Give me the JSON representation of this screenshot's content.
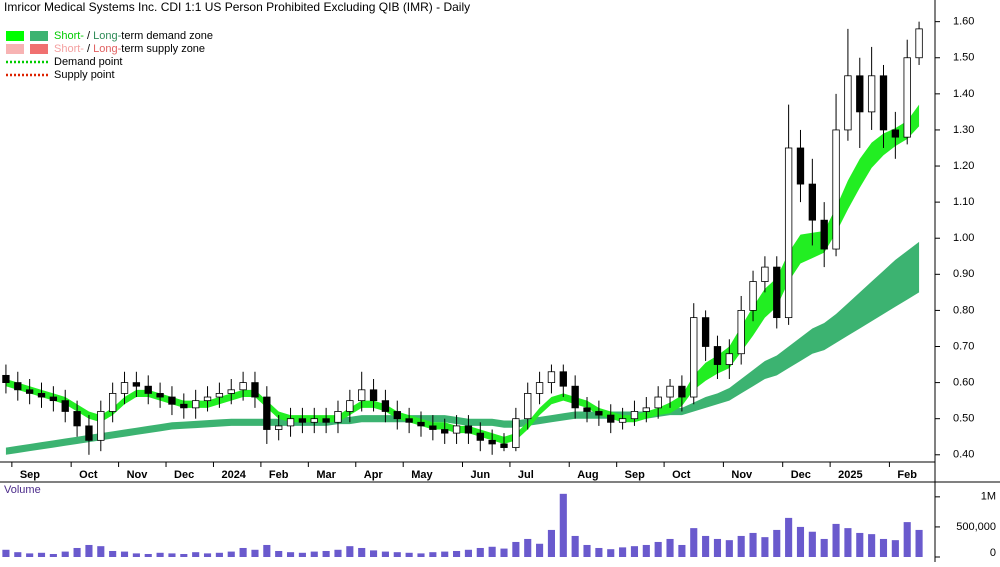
{
  "chart_data": {
    "type": "candlestick",
    "title": "Imricor Medical Systems Inc. CDI 1:1 US Person Prohibited Excluding QIB (IMR) - Daily",
    "categories": [
      null,
      "Sep",
      null,
      null,
      null,
      null,
      "Oct",
      null,
      null,
      null,
      "Nov",
      null,
      null,
      null,
      "Dec",
      null,
      null,
      null,
      "2024",
      null,
      null,
      null,
      "Feb",
      null,
      null,
      null,
      "Mar",
      null,
      null,
      null,
      "Apr",
      null,
      null,
      null,
      "May",
      null,
      null,
      null,
      null,
      "Jun",
      null,
      null,
      null,
      "Jul",
      null,
      null,
      null,
      null,
      "Aug",
      null,
      null,
      null,
      "Sep",
      null,
      null,
      null,
      "Oct",
      null,
      null,
      null,
      null,
      "Nov",
      null,
      null,
      null,
      null,
      "Dec",
      null,
      null,
      null,
      "2025",
      null,
      null,
      null,
      null,
      "Feb",
      null,
      null
    ],
    "open": [
      0.62,
      0.6,
      0.58,
      0.57,
      0.56,
      0.55,
      0.52,
      0.48,
      0.44,
      0.52,
      0.57,
      0.6,
      0.59,
      0.57,
      0.56,
      0.54,
      0.53,
      0.55,
      0.56,
      0.57,
      0.58,
      0.6,
      0.56,
      0.47,
      0.48,
      0.5,
      0.49,
      0.5,
      0.49,
      0.52,
      0.55,
      0.58,
      0.55,
      0.52,
      0.5,
      0.49,
      0.48,
      0.47,
      0.46,
      0.48,
      0.46,
      0.44,
      0.43,
      0.42,
      0.5,
      0.57,
      0.6,
      0.63,
      0.59,
      0.53,
      0.52,
      0.51,
      0.49,
      0.5,
      0.52,
      0.53,
      0.56,
      0.59,
      0.56,
      0.78,
      0.7,
      0.65,
      0.68,
      0.8,
      0.88,
      0.92,
      0.78,
      1.25,
      1.15,
      1.05,
      0.97,
      1.3,
      1.45,
      1.35,
      1.45,
      1.3,
      1.28,
      1.5
    ],
    "high": [
      0.65,
      0.63,
      0.61,
      0.6,
      0.59,
      0.58,
      0.55,
      0.51,
      0.55,
      0.6,
      0.63,
      0.63,
      0.62,
      0.6,
      0.59,
      0.57,
      0.58,
      0.59,
      0.6,
      0.61,
      0.63,
      0.63,
      0.59,
      0.51,
      0.53,
      0.53,
      0.53,
      0.53,
      0.55,
      0.58,
      0.63,
      0.61,
      0.58,
      0.55,
      0.53,
      0.52,
      0.51,
      0.5,
      0.51,
      0.51,
      0.49,
      0.47,
      0.46,
      0.53,
      0.6,
      0.63,
      0.65,
      0.65,
      0.62,
      0.56,
      0.55,
      0.54,
      0.53,
      0.55,
      0.56,
      0.59,
      0.61,
      0.62,
      0.82,
      0.8,
      0.73,
      0.72,
      0.84,
      0.91,
      0.95,
      0.95,
      1.37,
      1.3,
      1.22,
      1.1,
      1.4,
      1.58,
      1.5,
      1.53,
      1.48,
      1.35,
      1.55,
      1.6
    ],
    "low": [
      0.57,
      0.55,
      0.54,
      0.53,
      0.52,
      0.49,
      0.45,
      0.4,
      0.41,
      0.49,
      0.54,
      0.56,
      0.54,
      0.53,
      0.51,
      0.5,
      0.5,
      0.52,
      0.53,
      0.54,
      0.55,
      0.53,
      0.43,
      0.44,
      0.45,
      0.46,
      0.46,
      0.46,
      0.46,
      0.49,
      0.52,
      0.52,
      0.49,
      0.47,
      0.46,
      0.45,
      0.44,
      0.43,
      0.43,
      0.43,
      0.41,
      0.4,
      0.41,
      0.41,
      0.47,
      0.54,
      0.57,
      0.56,
      0.5,
      0.49,
      0.48,
      0.46,
      0.47,
      0.48,
      0.49,
      0.5,
      0.53,
      0.52,
      0.54,
      0.66,
      0.61,
      0.61,
      0.65,
      0.77,
      0.85,
      0.75,
      0.76,
      1.1,
      0.98,
      0.92,
      0.95,
      1.27,
      1.25,
      1.3,
      1.25,
      1.22,
      1.26,
      1.48
    ],
    "close": [
      0.6,
      0.58,
      0.57,
      0.56,
      0.55,
      0.52,
      0.48,
      0.44,
      0.52,
      0.57,
      0.6,
      0.59,
      0.57,
      0.56,
      0.54,
      0.53,
      0.55,
      0.56,
      0.57,
      0.58,
      0.6,
      0.56,
      0.47,
      0.48,
      0.5,
      0.49,
      0.5,
      0.49,
      0.52,
      0.55,
      0.58,
      0.55,
      0.52,
      0.5,
      0.49,
      0.48,
      0.47,
      0.46,
      0.48,
      0.46,
      0.44,
      0.43,
      0.42,
      0.5,
      0.57,
      0.6,
      0.63,
      0.59,
      0.53,
      0.52,
      0.51,
      0.49,
      0.5,
      0.52,
      0.53,
      0.56,
      0.59,
      0.56,
      0.78,
      0.7,
      0.65,
      0.68,
      0.8,
      0.88,
      0.92,
      0.78,
      1.25,
      1.15,
      1.05,
      0.97,
      1.3,
      1.45,
      1.35,
      1.45,
      1.3,
      1.28,
      1.5,
      1.58
    ],
    "short_term_zone": {
      "color": "#22ee22",
      "lower": [
        0.59,
        0.58,
        0.57,
        0.56,
        0.55,
        0.54,
        0.52,
        0.5,
        0.49,
        0.51,
        0.54,
        0.56,
        0.56,
        0.55,
        0.54,
        0.53,
        0.53,
        0.53,
        0.54,
        0.55,
        0.56,
        0.56,
        0.53,
        0.5,
        0.49,
        0.49,
        0.49,
        0.49,
        0.49,
        0.51,
        0.53,
        0.53,
        0.52,
        0.5,
        0.49,
        0.48,
        0.47,
        0.47,
        0.46,
        0.46,
        0.45,
        0.44,
        0.43,
        0.44,
        0.47,
        0.51,
        0.54,
        0.55,
        0.54,
        0.53,
        0.51,
        0.5,
        0.49,
        0.49,
        0.5,
        0.51,
        0.515,
        0.535,
        0.58,
        0.605,
        0.625,
        0.64,
        0.685,
        0.73,
        0.78,
        0.81,
        0.88,
        0.93,
        0.945,
        0.96,
        1.015,
        1.08,
        1.14,
        1.195,
        1.23,
        1.255,
        1.275,
        1.31
      ],
      "upper": [
        0.61,
        0.6,
        0.59,
        0.58,
        0.57,
        0.56,
        0.54,
        0.52,
        0.51,
        0.53,
        0.56,
        0.58,
        0.58,
        0.57,
        0.56,
        0.55,
        0.55,
        0.55,
        0.56,
        0.57,
        0.58,
        0.58,
        0.55,
        0.52,
        0.51,
        0.51,
        0.51,
        0.51,
        0.51,
        0.53,
        0.55,
        0.55,
        0.54,
        0.52,
        0.51,
        0.5,
        0.49,
        0.49,
        0.48,
        0.48,
        0.47,
        0.46,
        0.45,
        0.46,
        0.49,
        0.53,
        0.56,
        0.57,
        0.56,
        0.55,
        0.53,
        0.52,
        0.51,
        0.51,
        0.52,
        0.53,
        0.545,
        0.565,
        0.62,
        0.655,
        0.675,
        0.7,
        0.755,
        0.81,
        0.86,
        0.89,
        0.96,
        1.01,
        1.015,
        1.02,
        1.085,
        1.16,
        1.22,
        1.265,
        1.29,
        1.305,
        1.325,
        1.37
      ]
    },
    "long_term_zone": {
      "color": "#3cb371",
      "lower": [
        0.4,
        0.405,
        0.41,
        0.415,
        0.42,
        0.425,
        0.43,
        0.435,
        0.44,
        0.445,
        0.45,
        0.455,
        0.46,
        0.465,
        0.47,
        0.472,
        0.474,
        0.476,
        0.478,
        0.48,
        0.48,
        0.48,
        0.48,
        0.48,
        0.48,
        0.48,
        0.48,
        0.48,
        0.485,
        0.485,
        0.49,
        0.49,
        0.49,
        0.49,
        0.49,
        0.49,
        0.49,
        0.49,
        0.485,
        0.48,
        0.48,
        0.48,
        0.475,
        0.475,
        0.48,
        0.485,
        0.49,
        0.495,
        0.5,
        0.5,
        0.5,
        0.5,
        0.5,
        0.5,
        0.5,
        0.505,
        0.51,
        0.51,
        0.52,
        0.53,
        0.54,
        0.55,
        0.57,
        0.59,
        0.61,
        0.62,
        0.64,
        0.66,
        0.68,
        0.69,
        0.71,
        0.73,
        0.75,
        0.77,
        0.79,
        0.81,
        0.83,
        0.85
      ],
      "upper": [
        0.42,
        0.425,
        0.43,
        0.435,
        0.44,
        0.445,
        0.45,
        0.455,
        0.46,
        0.465,
        0.47,
        0.475,
        0.48,
        0.485,
        0.49,
        0.492,
        0.494,
        0.496,
        0.498,
        0.5,
        0.5,
        0.5,
        0.5,
        0.5,
        0.5,
        0.5,
        0.5,
        0.5,
        0.505,
        0.505,
        0.51,
        0.51,
        0.51,
        0.51,
        0.51,
        0.51,
        0.51,
        0.51,
        0.505,
        0.5,
        0.5,
        0.5,
        0.495,
        0.495,
        0.5,
        0.505,
        0.51,
        0.515,
        0.52,
        0.52,
        0.52,
        0.52,
        0.52,
        0.52,
        0.52,
        0.525,
        0.53,
        0.53,
        0.545,
        0.56,
        0.57,
        0.585,
        0.61,
        0.635,
        0.66,
        0.675,
        0.7,
        0.725,
        0.75,
        0.765,
        0.79,
        0.82,
        0.85,
        0.88,
        0.91,
        0.94,
        0.965,
        0.99
      ]
    },
    "ylim": [
      0.38,
      1.66
    ],
    "yticks": [
      {
        "value": 0.4,
        "label": "0.40"
      },
      {
        "value": 0.5,
        "label": "0.50"
      },
      {
        "value": 0.6,
        "label": "0.60"
      },
      {
        "value": 0.7,
        "label": "0.70"
      },
      {
        "value": 0.8,
        "label": "0.80"
      },
      {
        "value": 0.9,
        "label": "0.90"
      },
      {
        "value": 1.0,
        "label": "1.00"
      },
      {
        "value": 1.1,
        "label": "1.10"
      },
      {
        "value": 1.2,
        "label": "1.20"
      },
      {
        "value": 1.3,
        "label": "1.30"
      },
      {
        "value": 1.4,
        "label": "1.40"
      },
      {
        "value": 1.5,
        "label": "1.50"
      },
      {
        "value": 1.6,
        "label": "1.60"
      }
    ],
    "legend": [
      {
        "swatches": [
          "#00ff00",
          "#3cb371"
        ],
        "parts": [
          {
            "text": "Short-",
            "color": "#00cc00"
          },
          {
            "text": " / ",
            "color": "#000000"
          },
          {
            "text": "Long-",
            "color": "#2e8b57"
          },
          {
            "text": "term demand zone",
            "color": "#000000"
          }
        ]
      },
      {
        "swatches": [
          "#f7b3b3",
          "#f07070"
        ],
        "parts": [
          {
            "text": "Short-",
            "color": "#f4a0a0"
          },
          {
            "text": " / ",
            "color": "#000000"
          },
          {
            "text": "Long-",
            "color": "#e06060"
          },
          {
            "text": "term supply zone",
            "color": "#000000"
          }
        ]
      },
      {
        "line": "#00cc00",
        "parts": [
          {
            "text": "Demand point",
            "color": "#000000"
          }
        ]
      },
      {
        "line": "#dd2200",
        "parts": [
          {
            "text": "Supply point",
            "color": "#000000"
          }
        ]
      }
    ],
    "volume": {
      "label": "Volume",
      "color": "#6a5acd",
      "values": [
        120000,
        80000,
        60000,
        70000,
        50000,
        90000,
        150000,
        200000,
        180000,
        100000,
        90000,
        60000,
        50000,
        70000,
        60000,
        50000,
        80000,
        60000,
        70000,
        90000,
        150000,
        120000,
        200000,
        100000,
        80000,
        70000,
        90000,
        100000,
        120000,
        180000,
        150000,
        110000,
        90000,
        80000,
        70000,
        60000,
        80000,
        90000,
        100000,
        120000,
        150000,
        170000,
        140000,
        250000,
        300000,
        220000,
        450000,
        1050000,
        350000,
        200000,
        150000,
        130000,
        160000,
        180000,
        200000,
        250000,
        300000,
        200000,
        480000,
        350000,
        300000,
        280000,
        350000,
        400000,
        330000,
        450000,
        650000,
        500000,
        420000,
        300000,
        550000,
        480000,
        400000,
        380000,
        300000,
        280000,
        580000,
        450000
      ],
      "ylim": [
        0,
        1230000
      ],
      "yticks": [
        0,
        {
          "value": 500000,
          "label": "500,000"
        },
        {
          "value": 1000000,
          "label": "1M"
        }
      ]
    }
  }
}
